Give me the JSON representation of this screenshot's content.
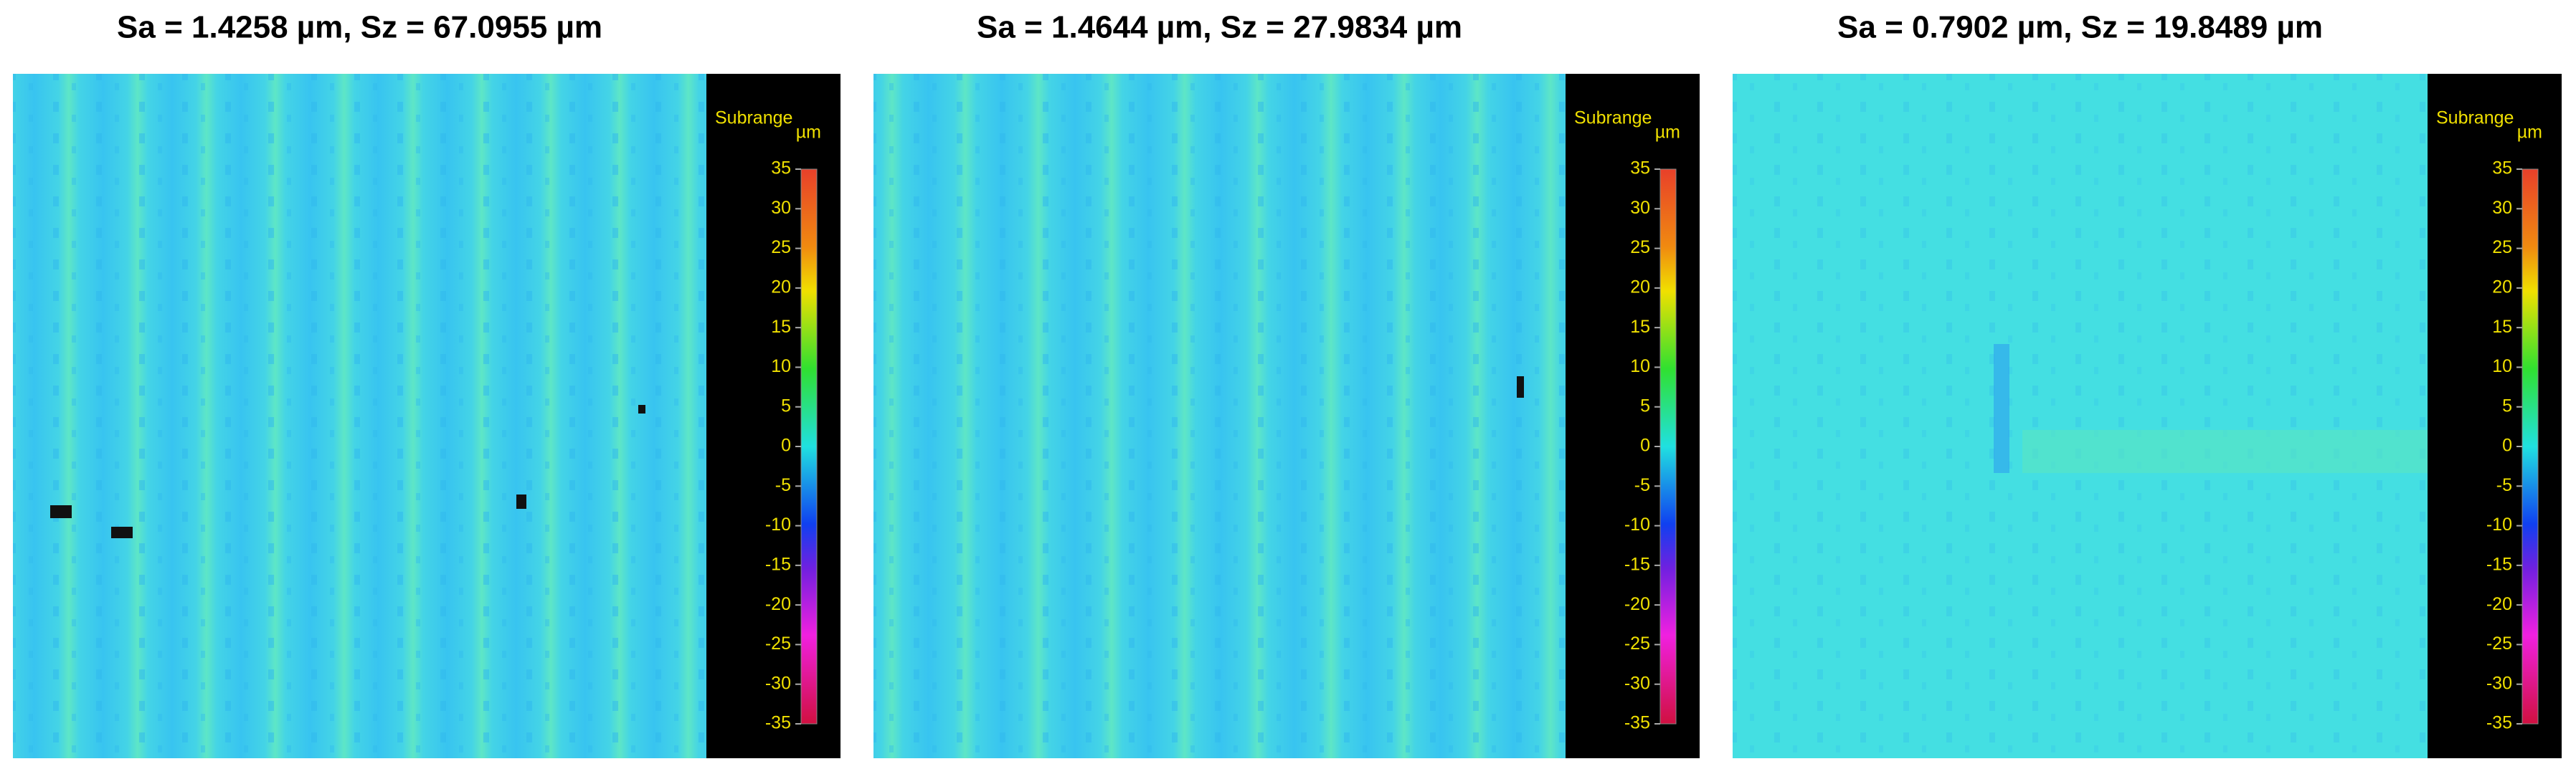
{
  "panels": [
    {
      "title": "Sa = 1.4258 µm, Sz = 67.0955 µm",
      "colorbar": {
        "label": "Subrange",
        "unit": "µm",
        "ticks": [
          35,
          30,
          25,
          20,
          15,
          10,
          5,
          0,
          -5,
          -10,
          -15,
          -20,
          -25,
          -30,
          -35
        ]
      }
    },
    {
      "title": "Sa = 1.4644 µm, Sz = 27.9834 µm",
      "colorbar": {
        "label": "Subrange",
        "unit": "µm",
        "ticks": [
          35,
          30,
          25,
          20,
          15,
          10,
          5,
          0,
          -5,
          -10,
          -15,
          -20,
          -25,
          -30,
          -35
        ]
      }
    },
    {
      "title": "Sa = 0.7902 µm, Sz = 19.8489 µm",
      "colorbar": {
        "label": "Subrange",
        "unit": "µm",
        "ticks": [
          35,
          30,
          25,
          20,
          15,
          10,
          5,
          0,
          -5,
          -10,
          -15,
          -20,
          -25,
          -30,
          -35
        ]
      }
    }
  ]
}
